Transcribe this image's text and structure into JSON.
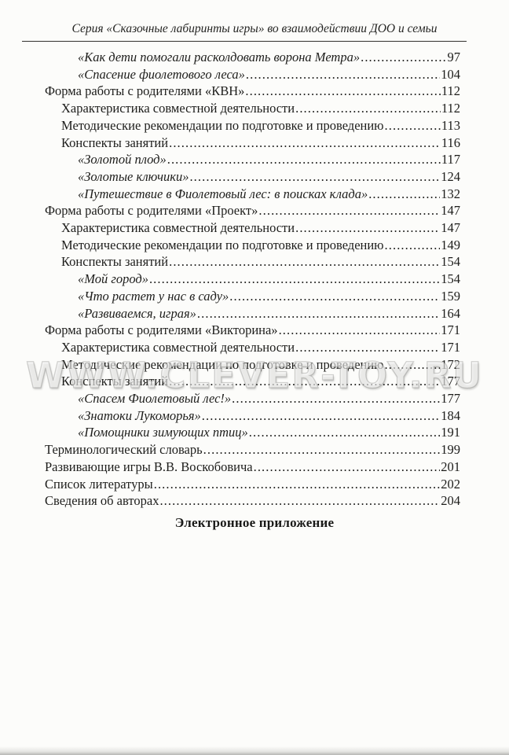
{
  "page": {
    "header": "Серия «Сказочные лабиринты игры» во взаимодействии ДОО и семьи",
    "watermark": "WWW.CLEVER-TOY.RU",
    "appendix_heading": "Электронное приложение"
  },
  "colors": {
    "paper": "#fcfcfa",
    "ink": "#1d1d1b",
    "watermark": "#bdbdb8",
    "header_rule": "#33312e"
  },
  "toc": {
    "entries": [
      {
        "level": 2,
        "italic": true,
        "title": "«Как дети помогали расколдовать ворона Метра»",
        "page": "97"
      },
      {
        "level": 2,
        "italic": true,
        "title": "«Спасение фиолетового леса»",
        "page": "104"
      },
      {
        "level": 0,
        "italic": false,
        "title": "Форма работы с родителями «КВН»",
        "page": "112"
      },
      {
        "level": 1,
        "italic": false,
        "title": "Характеристика совместной деятельности",
        "page": "112"
      },
      {
        "level": 1,
        "italic": false,
        "title": "Методические рекомендации по подготовке и проведению",
        "page": "113"
      },
      {
        "level": 1,
        "italic": false,
        "title": "Конспекты занятий",
        "page": "116"
      },
      {
        "level": 2,
        "italic": true,
        "title": "«Золотой плод»",
        "page": "117"
      },
      {
        "level": 2,
        "italic": true,
        "title": "«Золотые ключики»",
        "page": "124"
      },
      {
        "level": 2,
        "italic": true,
        "title": "«Путешествие в Фиолетовый лес: в поисках клада»",
        "page": "132"
      },
      {
        "level": 0,
        "italic": false,
        "title": "Форма работы с родителями «Проект»",
        "page": "147"
      },
      {
        "level": 1,
        "italic": false,
        "title": "Характеристика совместной деятельности",
        "page": "147"
      },
      {
        "level": 1,
        "italic": false,
        "title": "Методические рекомендации по подготовке и проведению",
        "page": "149"
      },
      {
        "level": 1,
        "italic": false,
        "title": "Конспекты занятий",
        "page": "154"
      },
      {
        "level": 2,
        "italic": true,
        "title": "«Мой город»",
        "page": "154"
      },
      {
        "level": 2,
        "italic": true,
        "title": "«Что растет у нас в саду»",
        "page": "159"
      },
      {
        "level": 2,
        "italic": true,
        "title": "«Развиваемся, играя»",
        "page": "164"
      },
      {
        "level": 0,
        "italic": false,
        "title": "Форма работы с родителями «Викторина»",
        "page": "171"
      },
      {
        "level": 1,
        "italic": false,
        "title": "Характеристика совместной деятельности",
        "page": "171"
      },
      {
        "level": 1,
        "italic": false,
        "title": "Методические рекомендации по подготовке и проведению",
        "page": "172"
      },
      {
        "level": 1,
        "italic": false,
        "title": "Конспекты занятий",
        "page": "177"
      },
      {
        "level": 2,
        "italic": true,
        "title": "«Спасем Фиолетовый лес!»",
        "page": "177"
      },
      {
        "level": 2,
        "italic": true,
        "title": "«Знатоки Лукоморья»",
        "page": "184"
      },
      {
        "level": 2,
        "italic": true,
        "title": "«Помощники зимующих птиц»",
        "page": "191"
      },
      {
        "level": 0,
        "italic": false,
        "title": "Терминологический словарь",
        "page": "199"
      },
      {
        "level": 0,
        "italic": false,
        "title": "Развивающие игры В.В. Воскобовича",
        "page": "201"
      },
      {
        "level": 0,
        "italic": false,
        "title": "Список литературы",
        "page": "202"
      },
      {
        "level": 0,
        "italic": false,
        "title": "Сведения об авторах",
        "page": "204"
      }
    ]
  }
}
